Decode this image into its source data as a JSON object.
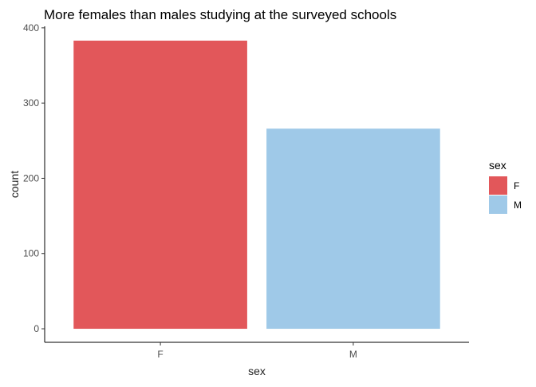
{
  "chart_data": {
    "type": "bar",
    "title": "More females than males studying at the surveyed schools",
    "xlabel": "sex",
    "ylabel": "count",
    "categories": [
      "F",
      "M"
    ],
    "values": [
      383,
      266
    ],
    "colors": [
      "#e2575a",
      "#9fc9e8"
    ],
    "ylim": [
      -18,
      402
    ],
    "yticks": [
      0,
      100,
      200,
      300,
      400
    ],
    "grid": false,
    "legend": {
      "title": "sex",
      "placement": "right",
      "entries": [
        {
          "label": "F",
          "color": "#e2575a"
        },
        {
          "label": "M",
          "color": "#9fc9e8"
        }
      ]
    }
  }
}
